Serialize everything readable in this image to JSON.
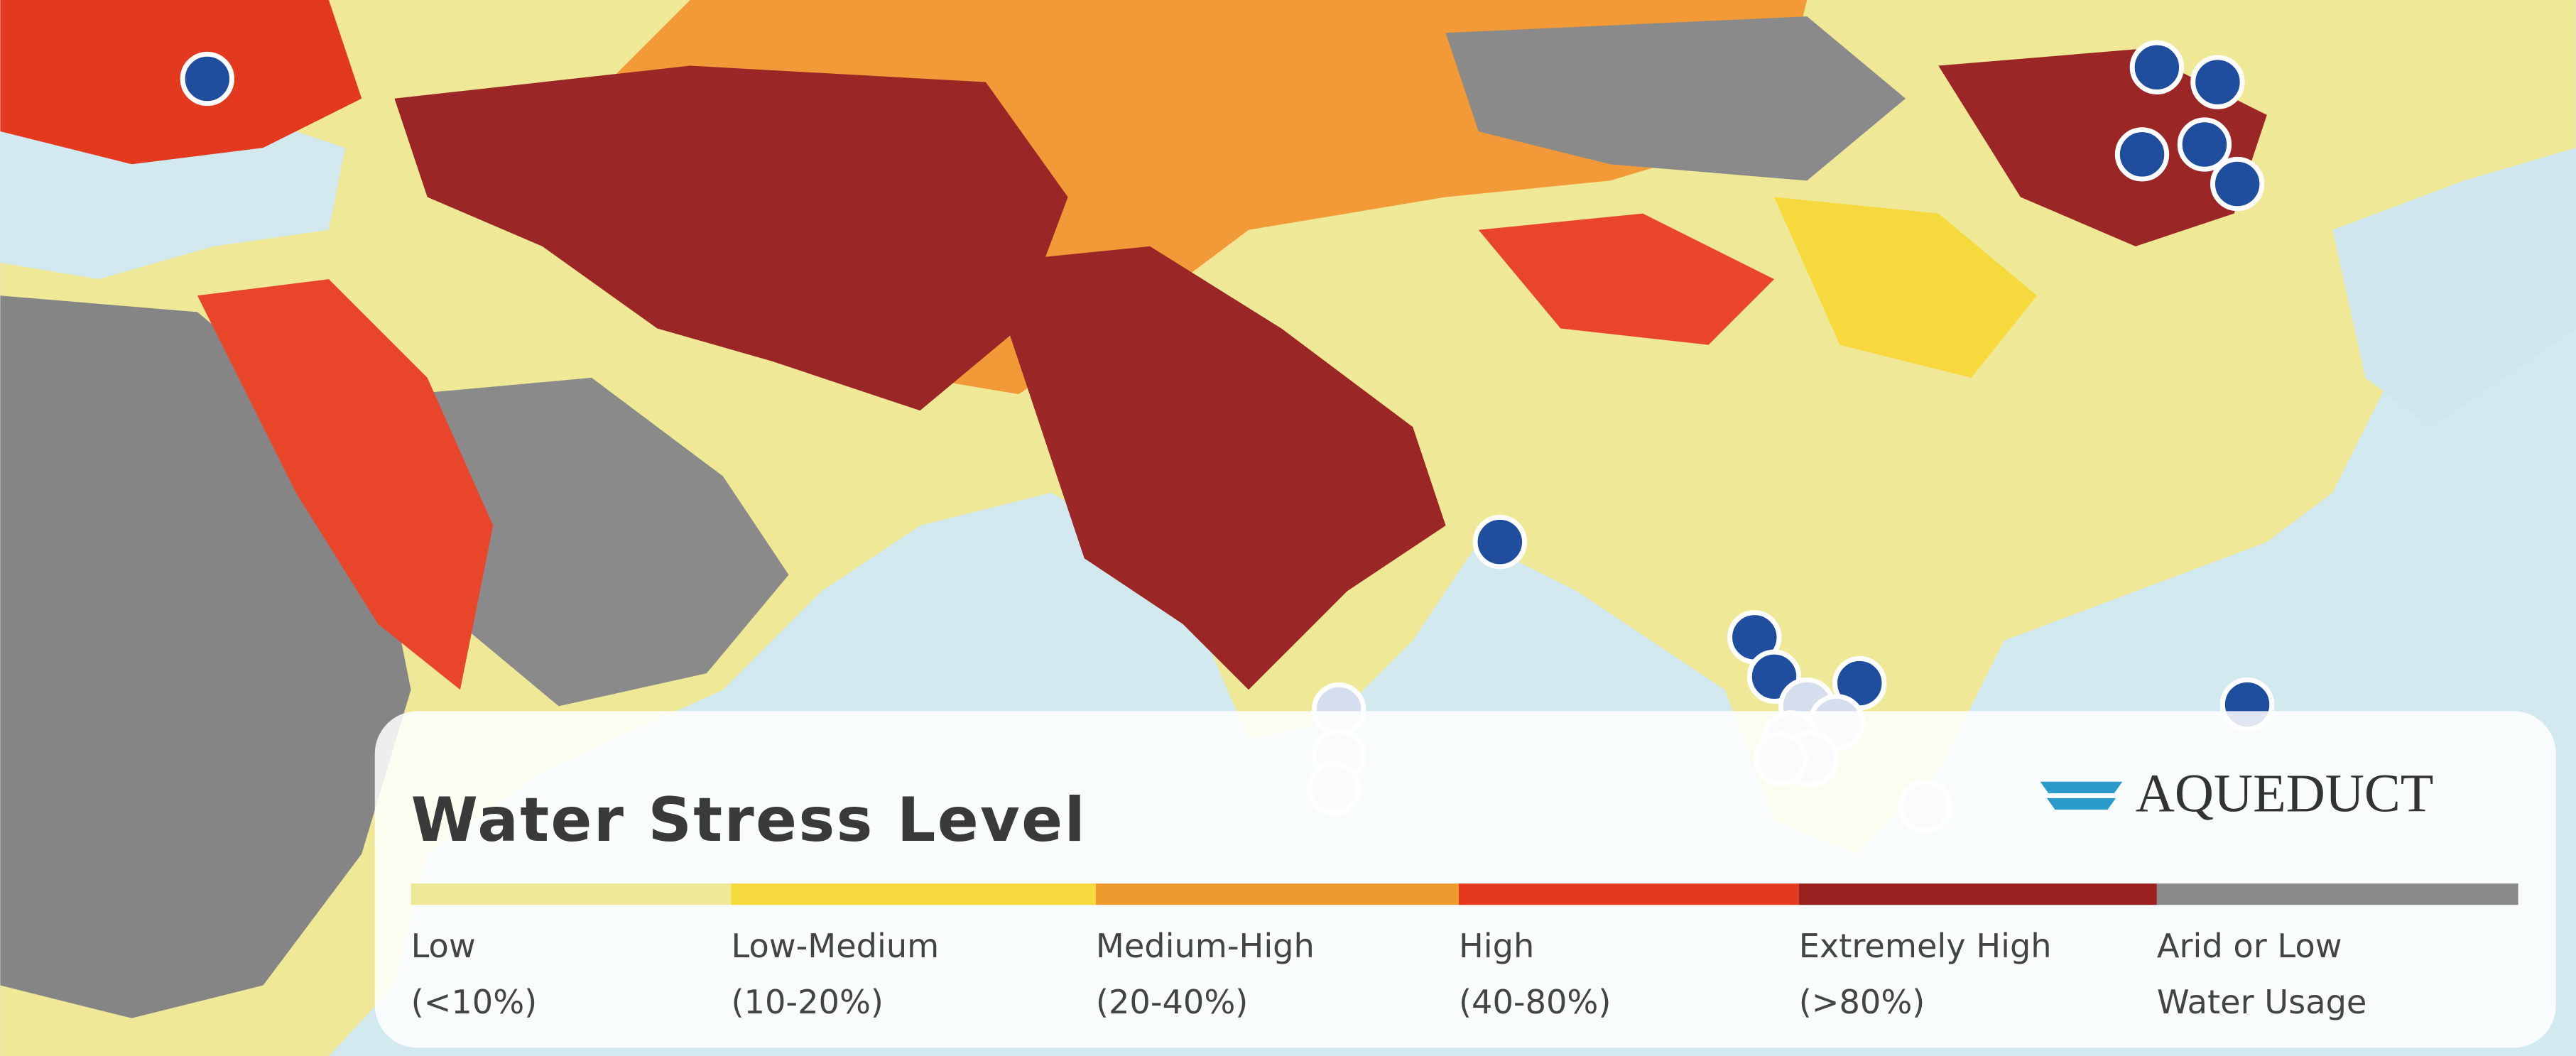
{
  "legend": {
    "title": "Water Stress Level",
    "items": [
      {
        "label": "Low",
        "range": "(<10%)",
        "color": "#efe896"
      },
      {
        "label": "Low-Medium",
        "range": "(10-20%)",
        "color": "#f6d93c"
      },
      {
        "label": "Medium-High",
        "range": "(20-40%)",
        "color": "#ee9a2f"
      },
      {
        "label": "High",
        "range": "(40-80%)",
        "color": "#e2391f"
      },
      {
        "label": "Extremely High",
        "range": "(>80%)",
        "color": "#9a1f1f"
      },
      {
        "label": "Arid or Low",
        "range": "Water Usage",
        "color": "#8a8a8a"
      }
    ]
  },
  "logo": "AQUEDUCT"
}
